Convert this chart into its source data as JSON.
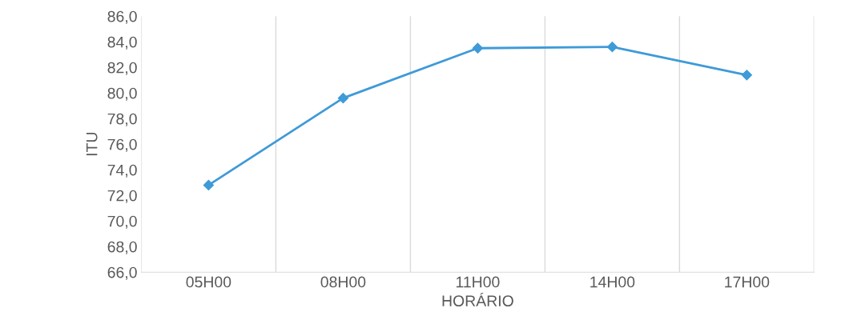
{
  "chart_data": {
    "type": "line",
    "xlabel": "HORÁRIO",
    "ylabel": "ITU",
    "categories": [
      "05H00",
      "08H00",
      "11H00",
      "14H00",
      "17H00"
    ],
    "series": [
      {
        "color": "#3f9ad8",
        "values": [
          72.8,
          79.6,
          83.5,
          83.6,
          81.4
        ]
      }
    ],
    "ylim": [
      66,
      86
    ],
    "yticks": [
      {
        "value": 66,
        "label": "66,0"
      },
      {
        "value": 68,
        "label": "68,0"
      },
      {
        "value": 70,
        "label": "70,0"
      },
      {
        "value": 72,
        "label": "72,0"
      },
      {
        "value": 74,
        "label": "74,0"
      },
      {
        "value": 76,
        "label": "76,0"
      },
      {
        "value": 78,
        "label": "78,0"
      },
      {
        "value": 80,
        "label": "80,0"
      },
      {
        "value": 82,
        "label": "82,0"
      },
      {
        "value": 84,
        "label": "84,0"
      },
      {
        "value": 86,
        "label": "86,0"
      }
    ],
    "grid": "x",
    "marker": "diamond",
    "line_style": "solid",
    "legend": false
  }
}
